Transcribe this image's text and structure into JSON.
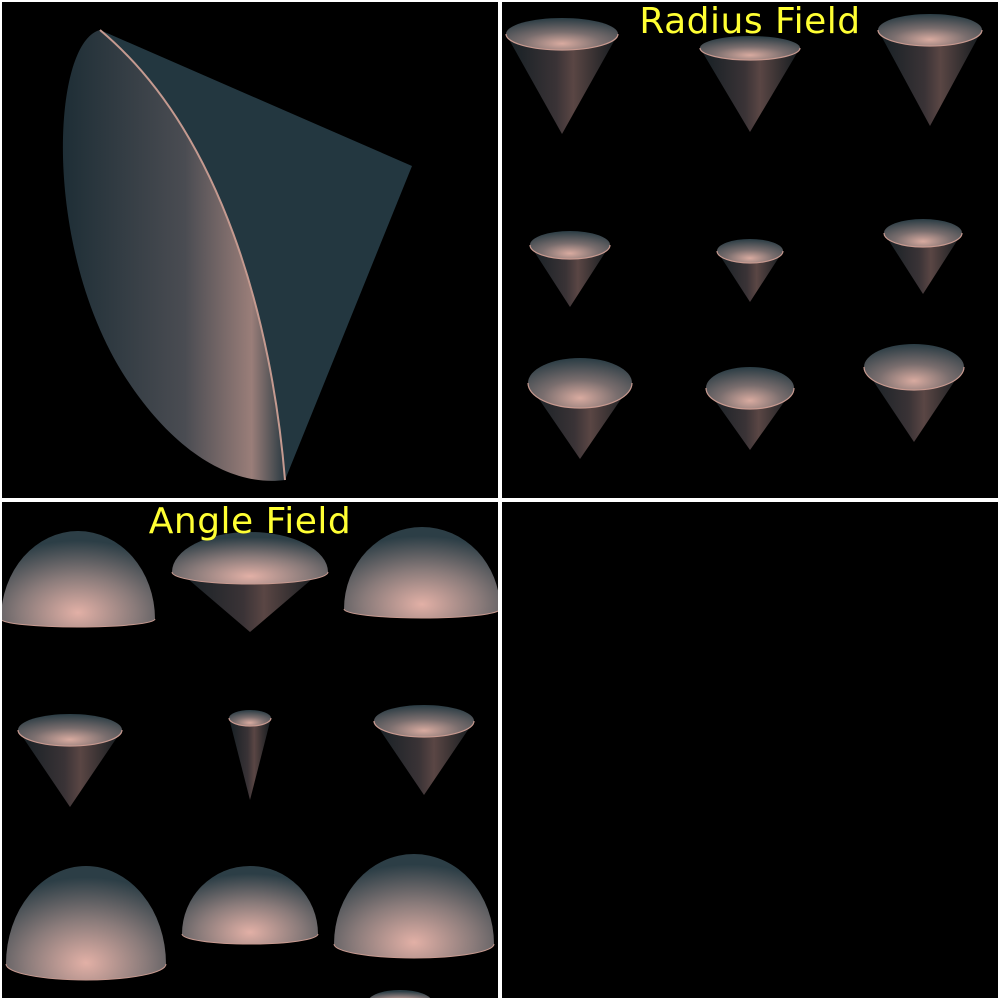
{
  "panes": {
    "top_left": {
      "title": "",
      "content": "single-cone"
    },
    "top_right": {
      "title": "Radius Field",
      "content": "cone-grid"
    },
    "bottom_left": {
      "title": "Angle Field",
      "content": "cone-grid"
    },
    "bottom_right": {
      "title": "",
      "content": "empty"
    }
  },
  "colors": {
    "background": "#000000",
    "divider": "#ffffff",
    "title_text": "#ffff33",
    "surface_dark": "#1f3038",
    "surface_highlight": "#d9aba0"
  }
}
